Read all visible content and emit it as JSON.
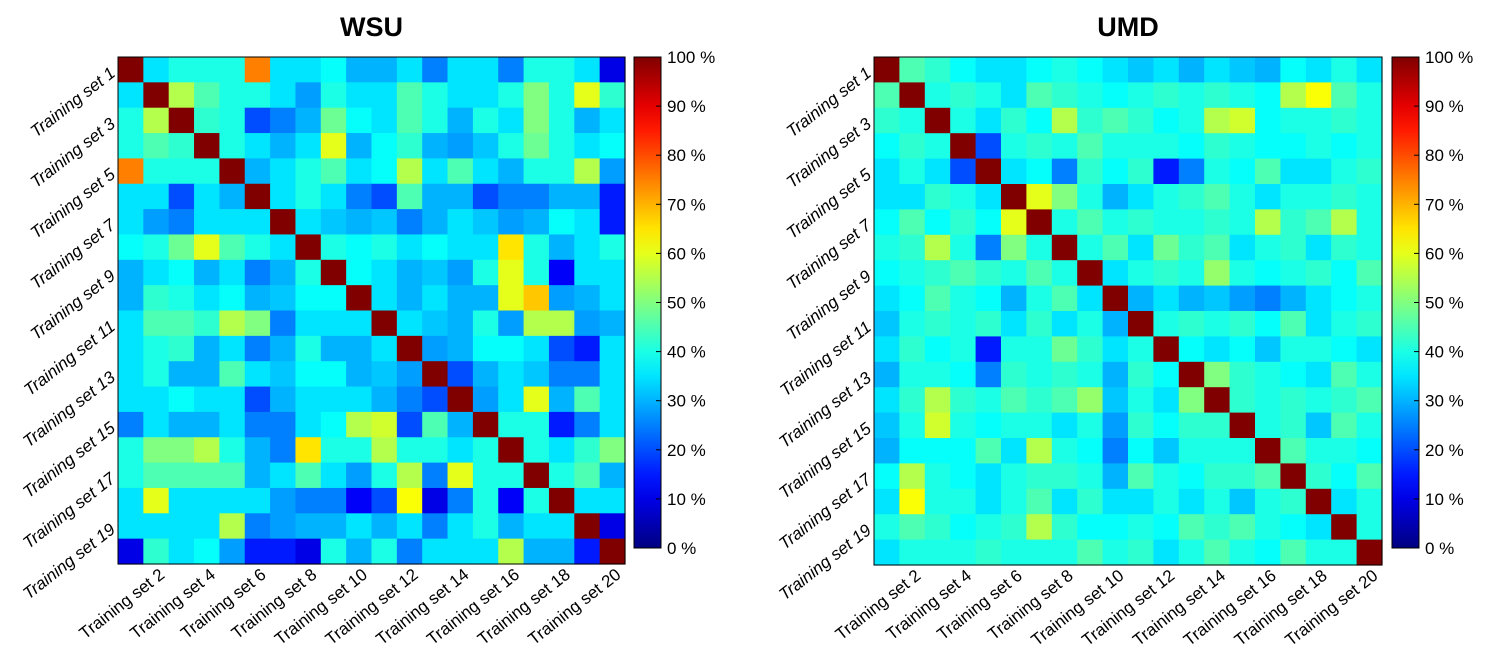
{
  "chart_data": [
    {
      "type": "heatmap",
      "title": "WSU",
      "row_labels": [
        "Training set 1",
        "Training set 3",
        "Training set 5",
        "Training set 7",
        "Training set 9",
        "Training set 11",
        "Training set 13",
        "Training set 15",
        "Training set 17",
        "Training set 19"
      ],
      "col_labels": [
        "Training set 2",
        "Training set 4",
        "Training set 6",
        "Training set 8",
        "Training set 10",
        "Training set 12",
        "Training set 14",
        "Training set 16",
        "Training set 18",
        "Training set 20"
      ],
      "colorbar_ticks": [
        "0 %",
        "10 %",
        "20 %",
        "30 %",
        "40 %",
        "50 %",
        "60 %",
        "70 %",
        "80 %",
        "90 %",
        "100 %"
      ],
      "vmin": 0,
      "vmax": 100,
      "colormap": "jet",
      "values": [
        [
          100,
          35,
          40,
          40,
          40,
          75,
          35,
          35,
          38,
          30,
          30,
          35,
          25,
          35,
          35,
          25,
          40,
          40,
          35,
          10
        ],
        [
          35,
          100,
          55,
          45,
          40,
          40,
          35,
          28,
          40,
          35,
          35,
          45,
          40,
          35,
          35,
          40,
          50,
          40,
          60,
          42
        ],
        [
          40,
          55,
          100,
          42,
          40,
          20,
          25,
          30,
          48,
          38,
          35,
          45,
          40,
          30,
          40,
          35,
          50,
          40,
          30,
          35
        ],
        [
          40,
          45,
          42,
          100,
          40,
          35,
          30,
          35,
          60,
          30,
          38,
          42,
          30,
          28,
          32,
          40,
          48,
          40,
          35,
          38
        ],
        [
          75,
          40,
          40,
          40,
          100,
          30,
          35,
          40,
          45,
          35,
          38,
          55,
          35,
          45,
          35,
          30,
          40,
          40,
          55,
          28
        ],
        [
          35,
          35,
          20,
          35,
          30,
          100,
          35,
          40,
          35,
          25,
          20,
          45,
          30,
          30,
          20,
          25,
          25,
          30,
          30,
          15
        ],
        [
          35,
          28,
          25,
          35,
          35,
          35,
          100,
          35,
          32,
          30,
          32,
          25,
          30,
          35,
          32,
          28,
          30,
          38,
          35,
          15
        ],
        [
          38,
          40,
          48,
          60,
          45,
          40,
          35,
          100,
          40,
          38,
          40,
          35,
          38,
          35,
          35,
          65,
          40,
          30,
          35,
          40
        ],
        [
          30,
          35,
          38,
          30,
          35,
          25,
          30,
          40,
          100,
          38,
          35,
          30,
          32,
          28,
          40,
          60,
          40,
          12,
          35,
          35
        ],
        [
          30,
          42,
          40,
          35,
          38,
          30,
          32,
          38,
          38,
          100,
          35,
          30,
          35,
          30,
          30,
          60,
          68,
          28,
          30,
          35
        ],
        [
          35,
          45,
          45,
          42,
          55,
          50,
          25,
          35,
          35,
          35,
          100,
          35,
          32,
          30,
          40,
          28,
          55,
          55,
          28,
          30
        ],
        [
          35,
          40,
          42,
          30,
          35,
          25,
          30,
          40,
          30,
          30,
          35,
          100,
          28,
          30,
          38,
          38,
          35,
          20,
          15,
          35
        ],
        [
          35,
          40,
          30,
          30,
          45,
          35,
          32,
          38,
          38,
          30,
          32,
          28,
          100,
          20,
          30,
          35,
          32,
          25,
          25,
          35
        ],
        [
          35,
          35,
          38,
          35,
          35,
          20,
          30,
          35,
          35,
          35,
          30,
          25,
          20,
          100,
          28,
          35,
          60,
          30,
          45,
          35
        ],
        [
          25,
          35,
          30,
          30,
          35,
          25,
          25,
          35,
          38,
          55,
          58,
          20,
          45,
          30,
          100,
          40,
          40,
          15,
          25,
          35
        ],
        [
          40,
          50,
          50,
          55,
          40,
          30,
          25,
          65,
          40,
          40,
          55,
          40,
          40,
          35,
          40,
          100,
          40,
          35,
          42,
          50
        ],
        [
          40,
          45,
          45,
          45,
          45,
          30,
          35,
          45,
          35,
          28,
          40,
          55,
          25,
          60,
          40,
          40,
          100,
          40,
          45,
          30
        ],
        [
          35,
          60,
          35,
          35,
          35,
          35,
          28,
          25,
          25,
          12,
          20,
          62,
          10,
          25,
          40,
          12,
          40,
          100,
          35,
          35
        ],
        [
          35,
          35,
          35,
          35,
          55,
          25,
          28,
          30,
          30,
          35,
          30,
          35,
          25,
          35,
          40,
          30,
          35,
          35,
          100,
          10
        ],
        [
          10,
          42,
          35,
          38,
          28,
          15,
          15,
          10,
          40,
          30,
          40,
          25,
          35,
          35,
          35,
          55,
          30,
          30,
          15,
          100
        ]
      ]
    },
    {
      "type": "heatmap",
      "title": "UMD",
      "row_labels": [
        "Training set 1",
        "Training set 3",
        "Training set 5",
        "Training set 7",
        "Training set 9",
        "Training set 11",
        "Training set 13",
        "Training set 15",
        "Training set 17",
        "Training set 19"
      ],
      "col_labels": [
        "Training set 2",
        "Training set 4",
        "Training set 6",
        "Training set 8",
        "Training set 10",
        "Training set 12",
        "Training set 14",
        "Training set 16",
        "Training set 18",
        "Training set 20"
      ],
      "colorbar_ticks": [
        "0 %",
        "10 %",
        "20 %",
        "30 %",
        "40 %",
        "50 %",
        "60 %",
        "70 %",
        "80 %",
        "90 %",
        "100 %"
      ],
      "vmin": 0,
      "vmax": 100,
      "colormap": "jet",
      "values": [
        [
          100,
          45,
          42,
          38,
          35,
          35,
          38,
          40,
          38,
          35,
          32,
          35,
          30,
          35,
          32,
          30,
          38,
          35,
          40,
          35
        ],
        [
          45,
          100,
          40,
          42,
          40,
          35,
          45,
          42,
          40,
          38,
          40,
          42,
          40,
          42,
          40,
          38,
          55,
          62,
          45,
          40
        ],
        [
          42,
          40,
          100,
          40,
          35,
          42,
          38,
          55,
          42,
          45,
          42,
          38,
          40,
          55,
          58,
          38,
          40,
          40,
          42,
          40
        ],
        [
          38,
          42,
          40,
          100,
          20,
          40,
          42,
          40,
          45,
          40,
          40,
          40,
          38,
          42,
          40,
          38,
          38,
          40,
          38,
          40
        ],
        [
          35,
          40,
          35,
          20,
          100,
          35,
          38,
          25,
          42,
          38,
          42,
          15,
          25,
          40,
          38,
          45,
          35,
          35,
          40,
          42
        ],
        [
          35,
          35,
          42,
          40,
          35,
          100,
          60,
          50,
          40,
          30,
          35,
          40,
          42,
          45,
          40,
          35,
          40,
          40,
          42,
          40
        ],
        [
          38,
          45,
          38,
          42,
          38,
          60,
          100,
          40,
          45,
          40,
          42,
          40,
          40,
          42,
          40,
          55,
          42,
          45,
          55,
          40
        ],
        [
          40,
          42,
          55,
          40,
          25,
          50,
          40,
          100,
          40,
          45,
          35,
          48,
          42,
          45,
          35,
          40,
          42,
          35,
          42,
          40
        ],
        [
          38,
          40,
          42,
          45,
          42,
          40,
          45,
          40,
          100,
          35,
          40,
          42,
          40,
          52,
          40,
          38,
          40,
          42,
          38,
          45
        ],
        [
          35,
          38,
          45,
          40,
          38,
          30,
          40,
          45,
          35,
          100,
          30,
          35,
          30,
          32,
          28,
          25,
          30,
          35,
          38,
          40
        ],
        [
          32,
          40,
          42,
          40,
          42,
          35,
          42,
          35,
          40,
          30,
          100,
          40,
          42,
          40,
          42,
          38,
          45,
          35,
          40,
          42
        ],
        [
          35,
          42,
          38,
          40,
          15,
          40,
          40,
          48,
          42,
          35,
          40,
          100,
          38,
          35,
          38,
          32,
          40,
          40,
          38,
          35
        ],
        [
          30,
          40,
          40,
          38,
          25,
          42,
          40,
          42,
          40,
          30,
          42,
          38,
          100,
          50,
          42,
          40,
          38,
          35,
          45,
          40
        ],
        [
          35,
          42,
          55,
          42,
          40,
          45,
          42,
          45,
          52,
          32,
          40,
          35,
          50,
          100,
          42,
          40,
          42,
          40,
          42,
          45
        ],
        [
          32,
          40,
          58,
          40,
          38,
          40,
          40,
          35,
          40,
          28,
          42,
          38,
          42,
          42,
          100,
          40,
          42,
          32,
          45,
          40
        ],
        [
          30,
          38,
          38,
          38,
          45,
          35,
          55,
          40,
          38,
          25,
          38,
          32,
          40,
          40,
          40,
          100,
          45,
          40,
          40,
          38
        ],
        [
          38,
          55,
          40,
          38,
          35,
          40,
          42,
          42,
          40,
          30,
          45,
          40,
          38,
          42,
          42,
          45,
          100,
          42,
          38,
          45
        ],
        [
          35,
          62,
          40,
          40,
          35,
          40,
          45,
          35,
          42,
          35,
          35,
          40,
          35,
          40,
          32,
          40,
          42,
          100,
          35,
          40
        ],
        [
          40,
          45,
          42,
          38,
          40,
          42,
          55,
          42,
          38,
          38,
          40,
          38,
          45,
          42,
          45,
          40,
          38,
          35,
          100,
          40
        ],
        [
          35,
          40,
          40,
          40,
          42,
          40,
          40,
          40,
          45,
          40,
          42,
          35,
          40,
          45,
          40,
          38,
          45,
          40,
          40,
          100
        ]
      ]
    }
  ]
}
